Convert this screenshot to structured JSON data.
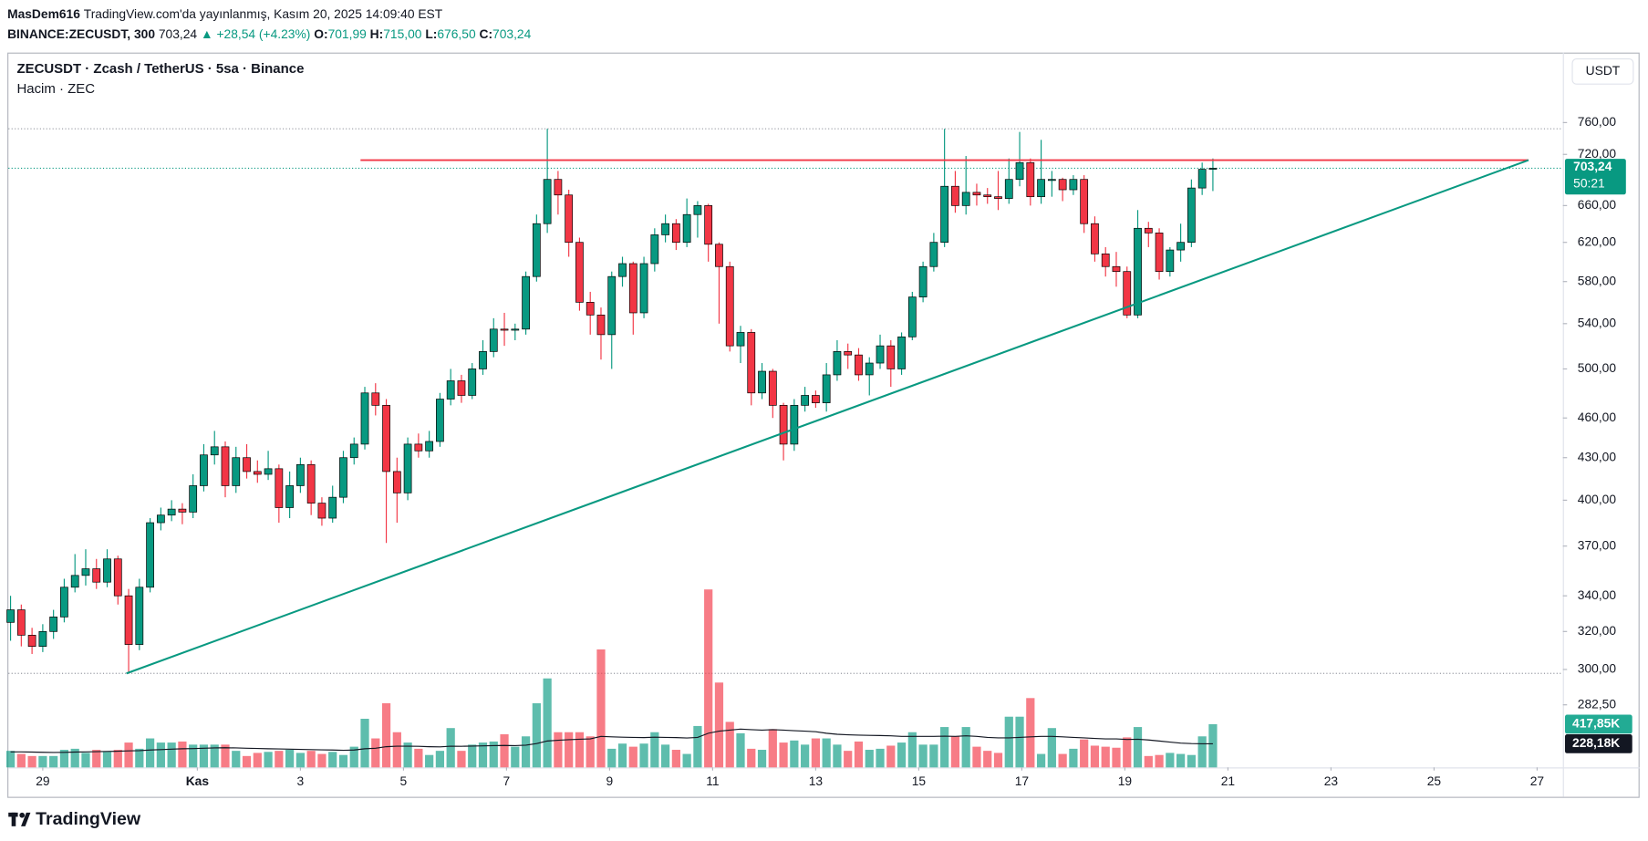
{
  "header": {
    "author": "MasDem616",
    "published": "TradingView.com'da yayınlanmış, Kasım 20, 2025 14:09:40 EST",
    "symbol": "BINANCE:ZECUSDT, 300",
    "last": "703,24",
    "change": "▲ +28,54 (+4.23%)",
    "ohlc": [
      {
        "key": "O:",
        "value": "701,99"
      },
      {
        "key": "H:",
        "value": "715,00"
      },
      {
        "key": "L:",
        "value": "676,50"
      },
      {
        "key": "C:",
        "value": "703,24"
      }
    ],
    "legend_title": "ZECUSDT · Zcash / TetherUS · 5sa · Binance",
    "volume_title": "Hacim · ZEC",
    "currency": "USDT",
    "brand": "TradingView"
  },
  "chart_data": {
    "type": "candlestick",
    "log_scale": true,
    "up_color": "#089981",
    "down_color": "#f23645",
    "xlim": [
      -16,
      708
    ],
    "ylim": [
      254,
      856
    ],
    "volume_lim": [
      0,
      1900
    ],
    "xticks": [
      {
        "value": 0,
        "label": "29"
      },
      {
        "value": 72,
        "label": "Kas"
      },
      {
        "value": 120,
        "label": "3"
      },
      {
        "value": 168,
        "label": "5"
      },
      {
        "value": 216,
        "label": "7"
      },
      {
        "value": 264,
        "label": "9"
      },
      {
        "value": 312,
        "label": "11"
      },
      {
        "value": 360,
        "label": "13"
      },
      {
        "value": 408,
        "label": "15"
      },
      {
        "value": 456,
        "label": "17"
      },
      {
        "value": 504,
        "label": "19"
      },
      {
        "value": 552,
        "label": "21"
      },
      {
        "value": 600,
        "label": "23"
      },
      {
        "value": 648,
        "label": "25"
      },
      {
        "value": 696,
        "label": "27"
      }
    ],
    "yticks": [
      {
        "value": 760,
        "label": "760,00"
      },
      {
        "value": 720,
        "label": "720,00"
      },
      {
        "value": 660,
        "label": "660,00"
      },
      {
        "value": 620,
        "label": "620,00"
      },
      {
        "value": 580,
        "label": "580,00"
      },
      {
        "value": 540,
        "label": "540,00"
      },
      {
        "value": 500,
        "label": "500,00"
      },
      {
        "value": 460,
        "label": "460,00"
      },
      {
        "value": 430,
        "label": "430,00"
      },
      {
        "value": 400,
        "label": "400,00"
      },
      {
        "value": 370,
        "label": "370,00"
      },
      {
        "value": 340,
        "label": "340,00"
      },
      {
        "value": 320,
        "label": "320,00"
      },
      {
        "value": 300,
        "label": "300,00"
      },
      {
        "value": 282.5,
        "label": "282,50"
      }
    ],
    "x": [
      -15,
      -10,
      -5,
      0,
      5,
      10,
      15,
      20,
      25,
      30,
      35,
      40,
      45,
      50,
      55,
      60,
      65,
      70,
      75,
      80,
      85,
      90,
      95,
      100,
      105,
      110,
      115,
      120,
      125,
      130,
      135,
      140,
      145,
      150,
      155,
      160,
      165,
      170,
      175,
      180,
      185,
      190,
      195,
      200,
      205,
      210,
      215,
      220,
      225,
      230,
      235,
      240,
      245,
      250,
      255,
      260,
      265,
      270,
      275,
      280,
      285,
      290,
      295,
      300,
      305,
      310,
      315,
      320,
      325,
      330,
      335,
      340,
      345,
      350,
      355,
      360,
      365,
      370,
      375,
      380,
      385,
      390,
      395,
      400,
      405,
      410,
      415,
      420,
      425,
      430,
      435,
      440,
      445,
      450,
      455,
      460,
      465,
      470,
      475,
      480,
      485,
      490,
      495,
      500,
      505,
      510,
      515,
      520,
      525,
      530,
      535,
      540,
      545
    ],
    "open": [
      325,
      332,
      318,
      312,
      320,
      328,
      345,
      352,
      356,
      348,
      362,
      340,
      313,
      345,
      385,
      390,
      394,
      392,
      410,
      432,
      438,
      410,
      430,
      420,
      418,
      422,
      395,
      410,
      425,
      398,
      388,
      402,
      430,
      440,
      480,
      470,
      420,
      405,
      440,
      435,
      442,
      475,
      490,
      478,
      500,
      515,
      535,
      534,
      535,
      585,
      640,
      690,
      672,
      620,
      560,
      548,
      530,
      585,
      598,
      550,
      598,
      628,
      640,
      620,
      650,
      660,
      618,
      595,
      520,
      532,
      480,
      498,
      470,
      440,
      470,
      478,
      472,
      495,
      515,
      512,
      495,
      505,
      520,
      500,
      528,
      565,
      595,
      620,
      682,
      660,
      675,
      672,
      670,
      668,
      690,
      710,
      670,
      690,
      690,
      678,
      690,
      640,
      608,
      595,
      590,
      548,
      635,
      630,
      590,
      612,
      620,
      680,
      701.99
    ],
    "high": [
      340,
      335,
      322,
      324,
      332,
      350,
      365,
      368,
      362,
      368,
      364,
      344,
      350,
      388,
      395,
      400,
      398,
      418,
      440,
      450,
      442,
      438,
      440,
      428,
      435,
      425,
      420,
      430,
      428,
      402,
      410,
      435,
      445,
      485,
      488,
      475,
      430,
      445,
      448,
      450,
      480,
      500,
      495,
      505,
      525,
      545,
      550,
      540,
      590,
      650,
      752,
      700,
      678,
      625,
      570,
      555,
      590,
      605,
      600,
      605,
      635,
      650,
      645,
      668,
      665,
      662,
      620,
      600,
      538,
      535,
      505,
      500,
      472,
      475,
      485,
      482,
      505,
      525,
      522,
      518,
      510,
      530,
      525,
      532,
      570,
      600,
      630,
      752,
      700,
      718,
      685,
      680,
      700,
      715,
      748,
      715,
      738,
      700,
      692,
      695,
      695,
      648,
      615,
      610,
      595,
      655,
      642,
      635,
      615,
      640,
      690,
      710,
      715
    ],
    "low": [
      315,
      312,
      308,
      309,
      316,
      325,
      342,
      346,
      344,
      345,
      335,
      298,
      310,
      342,
      380,
      386,
      384,
      388,
      406,
      425,
      402,
      405,
      415,
      412,
      414,
      385,
      388,
      405,
      390,
      383,
      385,
      398,
      425,
      436,
      462,
      372,
      385,
      400,
      430,
      430,
      438,
      470,
      472,
      475,
      495,
      510,
      520,
      525,
      530,
      580,
      630,
      650,
      605,
      552,
      530,
      508,
      500,
      575,
      530,
      545,
      590,
      620,
      612,
      615,
      625,
      600,
      540,
      515,
      505,
      470,
      475,
      460,
      428,
      435,
      465,
      468,
      465,
      490,
      500,
      490,
      478,
      500,
      485,
      495,
      525,
      560,
      590,
      615,
      652,
      650,
      660,
      662,
      655,
      662,
      682,
      660,
      662,
      670,
      665,
      672,
      630,
      600,
      585,
      575,
      545,
      545,
      615,
      582,
      585,
      600,
      615,
      672,
      676.5
    ],
    "close": [
      332,
      318,
      312,
      320,
      328,
      345,
      352,
      356,
      348,
      362,
      340,
      313,
      345,
      385,
      390,
      394,
      392,
      410,
      432,
      438,
      410,
      430,
      420,
      418,
      422,
      395,
      410,
      425,
      398,
      388,
      402,
      430,
      440,
      480,
      470,
      420,
      405,
      440,
      435,
      442,
      475,
      490,
      478,
      500,
      515,
      535,
      534,
      535,
      585,
      640,
      690,
      672,
      620,
      560,
      548,
      530,
      585,
      598,
      550,
      598,
      628,
      640,
      620,
      650,
      660,
      618,
      595,
      520,
      532,
      480,
      498,
      470,
      440,
      470,
      478,
      472,
      495,
      515,
      512,
      495,
      505,
      520,
      500,
      528,
      565,
      595,
      620,
      682,
      660,
      675,
      672,
      670,
      668,
      690,
      710,
      670,
      690,
      690,
      678,
      690,
      640,
      608,
      595,
      590,
      548,
      635,
      630,
      590,
      612,
      620,
      680,
      701.99,
      703.24
    ],
    "volume": [
      160,
      130,
      110,
      110,
      110,
      170,
      180,
      140,
      170,
      150,
      170,
      240,
      180,
      280,
      240,
      240,
      250,
      220,
      220,
      220,
      220,
      160,
      110,
      140,
      150,
      160,
      170,
      140,
      160,
      130,
      150,
      120,
      200,
      470,
      280,
      620,
      340,
      240,
      180,
      120,
      160,
      380,
      160,
      220,
      240,
      250,
      320,
      200,
      300,
      620,
      860,
      340,
      340,
      340,
      300,
      1140,
      180,
      230,
      200,
      230,
      340,
      220,
      170,
      130,
      400,
      1720,
      820,
      440,
      330,
      180,
      170,
      370,
      240,
      260,
      220,
      280,
      280,
      220,
      160,
      250,
      170,
      180,
      210,
      240,
      340,
      220,
      220,
      390,
      300,
      390,
      200,
      160,
      140,
      490,
      490,
      670,
      130,
      380,
      130,
      180,
      270,
      210,
      200,
      190,
      290,
      390,
      110,
      120,
      140,
      130,
      120,
      300,
      417.85
    ],
    "volume_ma": [
      150,
      150,
      148,
      146,
      144,
      145,
      148,
      150,
      152,
      154,
      156,
      160,
      162,
      168,
      172,
      176,
      180,
      182,
      185,
      188,
      190,
      188,
      185,
      183,
      180,
      178,
      176,
      174,
      172,
      170,
      168,
      165,
      168,
      180,
      185,
      200,
      205,
      205,
      204,
      200,
      198,
      205,
      204,
      206,
      208,
      210,
      212,
      210,
      215,
      230,
      255,
      262,
      268,
      272,
      275,
      300,
      295,
      292,
      290,
      288,
      292,
      290,
      288,
      284,
      290,
      330,
      350,
      360,
      370,
      365,
      360,
      365,
      360,
      355,
      350,
      345,
      330,
      320,
      315,
      312,
      310,
      308,
      305,
      300,
      300,
      300,
      300,
      302,
      300,
      305,
      300,
      290,
      285,
      285,
      290,
      295,
      300,
      300,
      295,
      290,
      285,
      280,
      275,
      275,
      270,
      272,
      265,
      255,
      245,
      235,
      230,
      228,
      228.18
    ],
    "resistance": {
      "x": [
        148,
        692
      ],
      "y": 713,
      "color": "#f23645"
    },
    "trendline": {
      "x": [
        39,
        692
      ],
      "y": [
        298,
        713
      ],
      "color": "#089981"
    },
    "last_price_label": "703,24",
    "countdown": "50:21",
    "volume_label": "417,85K",
    "volume_ma_label": "228,18K"
  }
}
